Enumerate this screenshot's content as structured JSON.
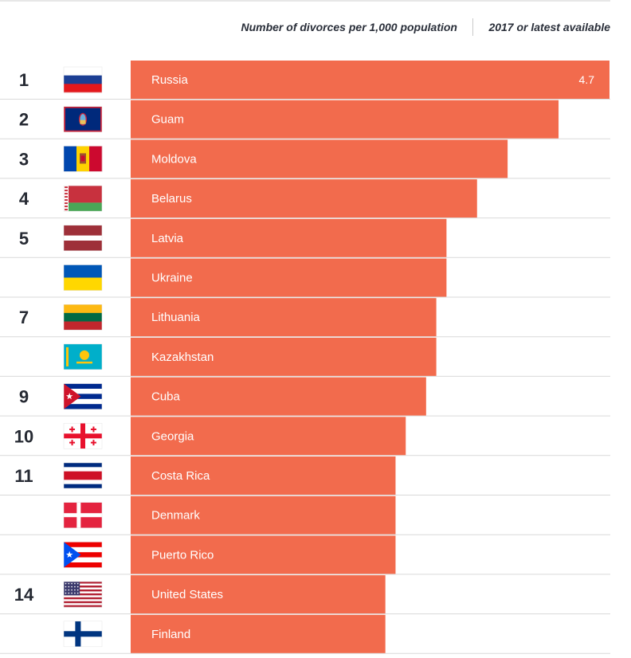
{
  "header": {
    "metric_label": "Number of divorces per 1,000 population",
    "year_label": "2017 or latest available"
  },
  "colors": {
    "bar": "#f26b4d",
    "text_dark": "#262a33"
  },
  "chart_data": {
    "type": "bar",
    "orientation": "horizontal",
    "title": "",
    "xlabel": "Number of divorces per 1,000 population",
    "ylabel": "",
    "xlim": [
      0,
      4.7
    ],
    "grid": false,
    "rows": [
      {
        "rank": "1",
        "country": "Russia",
        "value": 4.7,
        "value_label": "4.7",
        "flag_icon": "flag-russia-icon"
      },
      {
        "rank": "2",
        "country": "Guam",
        "value": 4.2,
        "value_label": "4.2",
        "flag_icon": "flag-guam-icon"
      },
      {
        "rank": "3",
        "country": "Moldova",
        "value": 3.7,
        "value_label": "3.7",
        "flag_icon": "flag-moldova-icon"
      },
      {
        "rank": "4",
        "country": "Belarus",
        "value": 3.4,
        "value_label": "3.4",
        "flag_icon": "flag-belarus-icon"
      },
      {
        "rank": "5",
        "country": "Latvia",
        "value": 3.1,
        "value_label": "3.1",
        "flag_icon": "flag-latvia-icon"
      },
      {
        "rank": "",
        "country": "Ukraine",
        "value": 3.1,
        "value_label": "3.1",
        "flag_icon": "flag-ukraine-icon"
      },
      {
        "rank": "7",
        "country": "Lithuania",
        "value": 3.0,
        "value_label": "3.0",
        "flag_icon": "flag-lithuania-icon"
      },
      {
        "rank": "",
        "country": "Kazakhstan",
        "value": 3.0,
        "value_label": "3.0",
        "flag_icon": "flag-kazakhstan-icon"
      },
      {
        "rank": "9",
        "country": "Cuba",
        "value": 2.9,
        "value_label": "2.9",
        "flag_icon": "flag-cuba-icon"
      },
      {
        "rank": "10",
        "country": "Georgia",
        "value": 2.7,
        "value_label": "2.7",
        "flag_icon": "flag-georgia-icon"
      },
      {
        "rank": "11",
        "country": "Costa Rica",
        "value": 2.6,
        "value_label": "2.6",
        "flag_icon": "flag-costa-rica-icon"
      },
      {
        "rank": "",
        "country": "Denmark",
        "value": 2.6,
        "value_label": "2.6",
        "flag_icon": "flag-denmark-icon"
      },
      {
        "rank": "",
        "country": "Puerto Rico",
        "value": 2.6,
        "value_label": "2.6",
        "flag_icon": "flag-puerto-rico-icon"
      },
      {
        "rank": "14",
        "country": "United States",
        "value": 2.5,
        "value_label": "2.5",
        "flag_icon": "flag-united-states-icon"
      },
      {
        "rank": "",
        "country": "Finland",
        "value": 2.5,
        "value_label": "2.5",
        "flag_icon": "flag-finland-icon"
      }
    ]
  }
}
